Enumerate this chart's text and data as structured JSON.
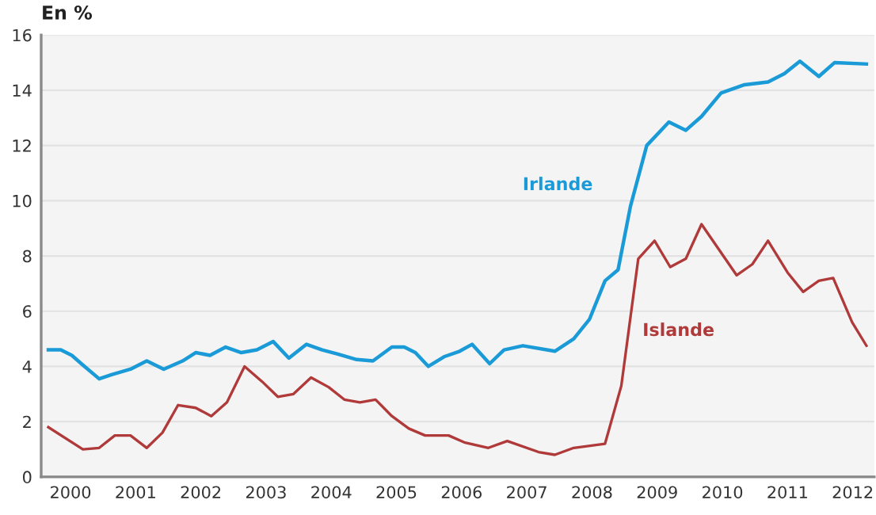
{
  "chart_data": {
    "type": "line",
    "ylabel": "En %",
    "xlim": [
      2000.05,
      2012.83
    ],
    "xticks": [
      {
        "value": 2000.5,
        "label": "2000"
      },
      {
        "value": 2001.5,
        "label": "2001"
      },
      {
        "value": 2002.5,
        "label": "2002"
      },
      {
        "value": 2003.5,
        "label": "2003"
      },
      {
        "value": 2004.5,
        "label": "2004"
      },
      {
        "value": 2005.5,
        "label": "2005"
      },
      {
        "value": 2006.5,
        "label": "2006"
      },
      {
        "value": 2007.5,
        "label": "2007"
      },
      {
        "value": 2008.5,
        "label": "2008"
      },
      {
        "value": 2009.5,
        "label": "2009"
      },
      {
        "value": 2010.5,
        "label": "2010"
      },
      {
        "value": 2011.5,
        "label": "2011"
      },
      {
        "value": 2012.5,
        "label": "2012"
      }
    ],
    "ylim": [
      0,
      16
    ],
    "yticks": [
      0,
      2,
      4,
      6,
      8,
      10,
      12,
      14,
      16
    ],
    "grid": "y",
    "legend": false,
    "marker": "none",
    "line_style": "solid",
    "series": [
      {
        "name": "Irlande",
        "color": "#1a9bd7",
        "x": [
          2000.16,
          2000.35,
          2000.52,
          2000.69,
          2000.94,
          2001.13,
          2001.42,
          2001.67,
          2001.93,
          2002.22,
          2002.42,
          2002.64,
          2002.88,
          2003.12,
          2003.36,
          2003.61,
          2003.85,
          2004.12,
          2004.36,
          2004.6,
          2004.89,
          2005.14,
          2005.43,
          2005.62,
          2005.79,
          2005.99,
          2006.23,
          2006.47,
          2006.66,
          2006.93,
          2007.15,
          2007.44,
          2007.93,
          2008.22,
          2008.46,
          2008.7,
          2008.9,
          2009.09,
          2009.34,
          2009.68,
          2009.94,
          2010.18,
          2010.48,
          2010.84,
          2011.2,
          2011.45,
          2011.69,
          2011.98,
          2012.22,
          2012.71
        ],
        "values": [
          4.6,
          4.6,
          4.4,
          4.05,
          3.55,
          3.7,
          3.9,
          4.2,
          3.9,
          4.2,
          4.5,
          4.4,
          4.7,
          4.5,
          4.6,
          4.9,
          4.3,
          4.8,
          4.6,
          4.45,
          4.25,
          4.2,
          4.7,
          4.7,
          4.5,
          4.0,
          4.35,
          4.55,
          4.8,
          4.1,
          4.6,
          4.75,
          4.55,
          5.0,
          5.7,
          7.1,
          7.5,
          9.8,
          12.0,
          12.85,
          12.55,
          13.05,
          13.9,
          14.2,
          14.3,
          14.6,
          15.05,
          14.5,
          15.0,
          14.95
        ]
      },
      {
        "name": "Islande",
        "color": "#b03a3a",
        "x": [
          2000.16,
          2000.69,
          2000.94,
          2001.18,
          2001.42,
          2001.67,
          2001.91,
          2002.15,
          2002.42,
          2002.66,
          2002.9,
          2003.17,
          2003.44,
          2003.68,
          2003.92,
          2004.19,
          2004.46,
          2004.7,
          2004.94,
          2005.18,
          2005.43,
          2005.69,
          2005.94,
          2006.3,
          2006.54,
          2006.91,
          2007.2,
          2007.68,
          2007.93,
          2008.22,
          2008.7,
          2008.95,
          2009.21,
          2009.46,
          2009.7,
          2009.94,
          2010.18,
          2010.72,
          2010.96,
          2011.2,
          2011.5,
          2011.74,
          2011.98,
          2012.2,
          2012.49,
          2012.71
        ],
        "values": [
          1.8,
          1.0,
          1.05,
          1.5,
          1.5,
          1.05,
          1.6,
          2.6,
          2.5,
          2.2,
          2.7,
          4.0,
          3.45,
          2.9,
          3.0,
          3.6,
          3.25,
          2.8,
          2.7,
          2.8,
          2.2,
          1.75,
          1.5,
          1.5,
          1.25,
          1.05,
          1.3,
          0.9,
          0.8,
          1.05,
          1.2,
          3.3,
          7.9,
          8.55,
          7.6,
          7.9,
          9.15,
          7.3,
          7.7,
          8.55,
          7.4,
          6.7,
          7.1,
          7.2,
          5.6,
          4.75
        ]
      }
    ]
  }
}
